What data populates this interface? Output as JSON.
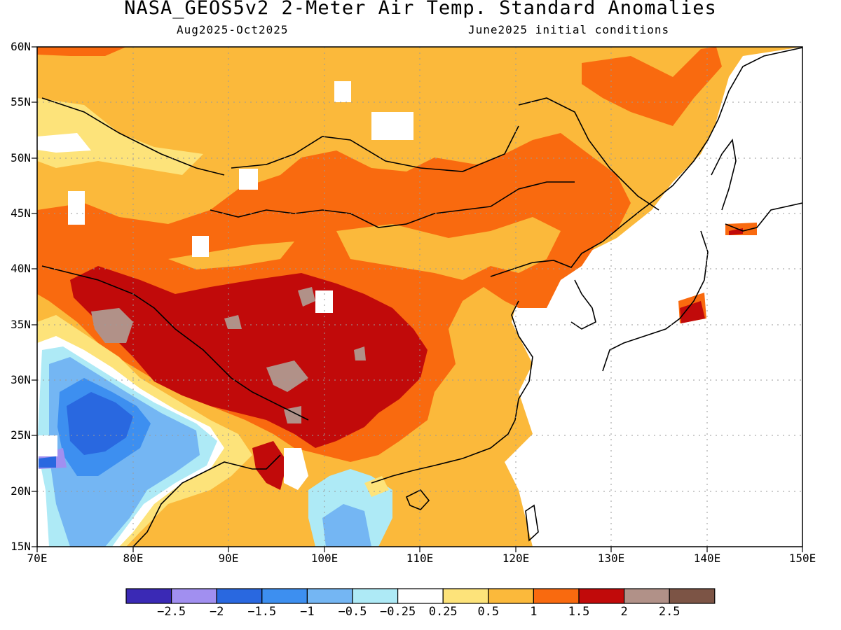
{
  "title": "NASA_GEOS5v2 2-Meter Air Temp. Standard Anomalies",
  "subtitle_left": "Aug2025-Oct2025",
  "subtitle_right": "June2025 initial conditions",
  "lat_labels": [
    "60N",
    "55N",
    "50N",
    "45N",
    "40N",
    "35N",
    "30N",
    "25N",
    "20N",
    "15N"
  ],
  "lon_labels": [
    "70E",
    "80E",
    "90E",
    "100E",
    "110E",
    "120E",
    "130E",
    "140E",
    "150E"
  ],
  "colorbar": {
    "colors": [
      "#3a29b5",
      "#a18ff0",
      "#2968e0",
      "#3d8ff0",
      "#74b6f3",
      "#aeeaf6",
      "#ffffff",
      "#fde37a",
      "#fbb93b",
      "#f96a0f",
      "#c10a0a",
      "#b19188",
      "#7c5445"
    ],
    "labels": [
      "-2.5",
      "-2",
      "-1.5",
      "-1",
      "-0.5",
      "-0.25",
      "0.25",
      "0.5",
      "1",
      "1.5",
      "2",
      "2.5"
    ]
  }
}
